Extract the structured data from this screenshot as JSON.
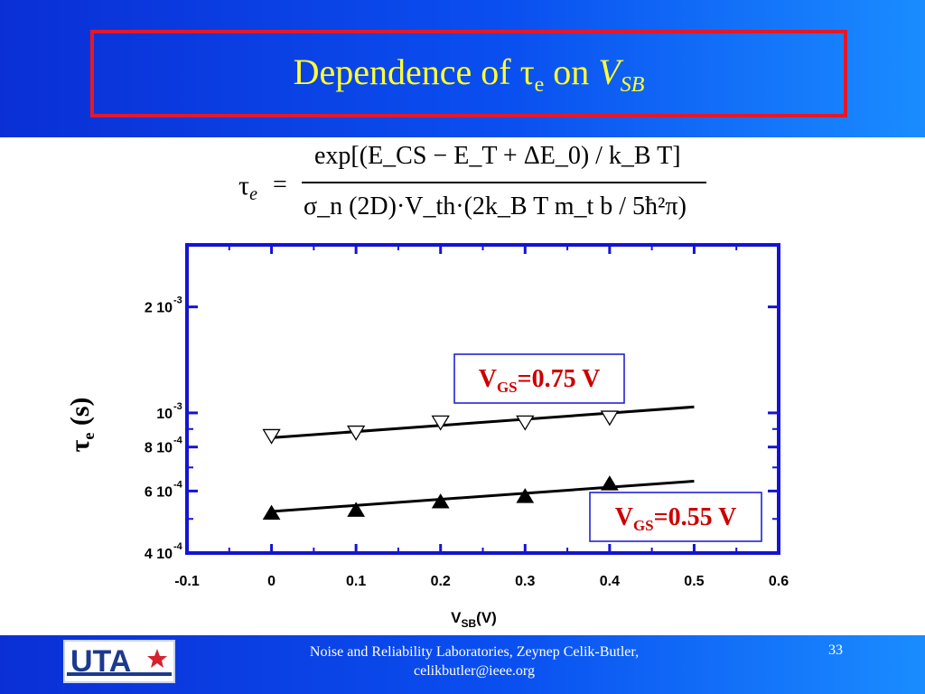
{
  "slide": {
    "title": {
      "prefix": "Dependence of ",
      "tau": "τ",
      "tau_sub": "e",
      "middle": " on ",
      "v": "V",
      "v_sub": "SB"
    },
    "formula": {
      "lhs": "τ",
      "lhs_sub": "e",
      "equals": "=",
      "numerator": "exp[(E_CS − E_T + ΔE_0) / k_B T]",
      "denominator": "σ_n (2D)·V_th·(2k_B T m_t b / 5ħ²π)"
    },
    "footer": {
      "line1": "Noise and Reliability Laboratories, Zeynep Celik-Butler,",
      "line2": "celikbutler@ieee.org",
      "page": "33",
      "logo_text": "UTA"
    },
    "colors": {
      "header_blue": "#0a3fe0",
      "title_yellow": "#ffff33",
      "title_border": "#e5172a",
      "axes_blue": "#1414d2",
      "label_red": "#cc0000"
    }
  },
  "chart_data": {
    "type": "scatter",
    "xlabel": "V",
    "xlabel_sub": "SB",
    "xlabel_unit": "(V)",
    "ylabel": "τ",
    "ylabel_sub": "e",
    "ylabel_unit": "(s)",
    "xlim": [
      -0.1,
      0.6
    ],
    "ylim": [
      0.0004,
      0.003
    ],
    "yscale": "log",
    "x_ticks": [
      -0.1,
      0,
      0.1,
      0.2,
      0.3,
      0.4,
      0.5,
      0.6
    ],
    "x_tick_labels": [
      "-0.1",
      "0",
      "0.1",
      "0.2",
      "0.3",
      "0.4",
      "0.5",
      "0.6"
    ],
    "y_tick_labels": [
      {
        "value": 0.0004,
        "mant": "4 10",
        "exp": "-4"
      },
      {
        "value": 0.0006,
        "mant": "6 10",
        "exp": "-4"
      },
      {
        "value": 0.0008,
        "mant": "8 10",
        "exp": "-4"
      },
      {
        "value": 0.001,
        "mant": "10",
        "exp": "-3"
      },
      {
        "value": 0.002,
        "mant": "2 10",
        "exp": "-3"
      }
    ],
    "series": [
      {
        "name": "V_GS=0.75 V",
        "label_main": "V",
        "label_sub": "GS",
        "label_rest": "=0.75 V",
        "marker": "open-triangle-down",
        "x": [
          0,
          0.1,
          0.2,
          0.3,
          0.4
        ],
        "y": [
          0.00086,
          0.00088,
          0.00094,
          0.00094,
          0.00097
        ],
        "fit": {
          "x": [
            0,
            0.5
          ],
          "y": [
            0.00085,
            0.00104
          ]
        }
      },
      {
        "name": "V_GS=0.55 V",
        "label_main": "V",
        "label_sub": "GS",
        "label_rest": "=0.55 V",
        "marker": "filled-triangle-up",
        "x": [
          0,
          0.1,
          0.2,
          0.3,
          0.4
        ],
        "y": [
          0.00052,
          0.00053,
          0.00056,
          0.00058,
          0.00063
        ],
        "fit": {
          "x": [
            0,
            0.5
          ],
          "y": [
            0.000525,
            0.00064
          ]
        }
      }
    ]
  }
}
